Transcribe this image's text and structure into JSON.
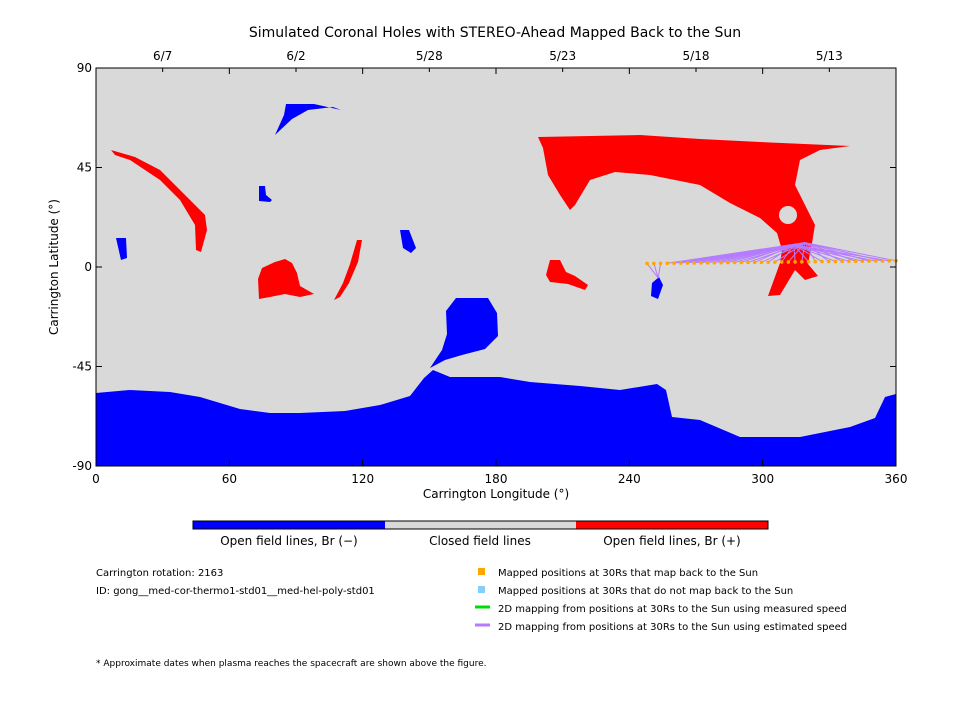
{
  "chart_data": {
    "type": "map",
    "title": "Simulated Coronal Holes with STEREO-Ahead Mapped Back to the Sun",
    "xlabel": "Carrington Longitude (°)",
    "ylabel": "Carrington Latitude (°)",
    "xlim": [
      0,
      360
    ],
    "ylim": [
      -90,
      90
    ],
    "x_ticks": [
      "0",
      "60",
      "120",
      "180",
      "240",
      "300",
      "360"
    ],
    "y_ticks": [
      "90",
      "45",
      "0",
      "-45",
      "-90"
    ],
    "top_axis_dates": [
      {
        "label": "6/7",
        "lon": 30
      },
      {
        "label": "6/2",
        "lon": 90
      },
      {
        "label": "5/28",
        "lon": 150
      },
      {
        "label": "5/23",
        "lon": 210
      },
      {
        "label": "5/18",
        "lon": 270
      },
      {
        "label": "5/13",
        "lon": 330
      }
    ],
    "colorbar": [
      {
        "label": "Open field lines, Br (−)",
        "color": "#0000ff"
      },
      {
        "label": "Closed field lines",
        "color": "#d9d9d9"
      },
      {
        "label": "Open field lines, Br (+)",
        "color": "#ff0000"
      }
    ],
    "info": {
      "rotation": "Carrington rotation: 2163",
      "id": "ID: gong__med-cor-thermo1-std01__med-hel-poly-std01"
    },
    "legend": [
      {
        "type": "square",
        "color": "#ffa500",
        "label": "Mapped positions at 30Rs that map back to the Sun"
      },
      {
        "type": "square",
        "color": "#87cefa",
        "label": "Mapped positions at 30Rs that do not map back to the Sun"
      },
      {
        "type": "line",
        "color": "#00dd00",
        "label": "2D mapping from positions at 30Rs to the Sun using measured speed"
      },
      {
        "type": "line",
        "color": "#b57bff",
        "label": "2D mapping from positions at 30Rs to the Sun using estimated speed"
      }
    ],
    "footnote": "* Approximate dates when plasma reaches the spacecraft are shown above the figure.",
    "mapped_points": {
      "lon_start": 248,
      "lat_start": 1.6,
      "lon_end": 360,
      "lat_end": 2.8,
      "count": 38
    },
    "footpoint_targets": [
      {
        "lon": 314,
        "lat": 10
      },
      {
        "lon": 319,
        "lat": 11
      },
      {
        "lon": 253,
        "lat": -5
      }
    ],
    "regions": {
      "positive": [
        {
          "name": "north-east-cap",
          "lon_range": [
            198,
            338
          ],
          "lat_range": [
            -13,
            55
          ]
        },
        {
          "name": "north-west-arc",
          "lon_range": [
            8,
            50
          ],
          "lat_range": [
            7,
            52
          ]
        },
        {
          "name": "mid-west-patch",
          "lon_range": [
            73,
            103
          ],
          "lat_range": [
            -14,
            3
          ]
        },
        {
          "name": "thin-arc-center",
          "lon_range": [
            100,
            120
          ],
          "lat_range": [
            -14,
            12
          ]
        },
        {
          "name": "equatorial-patch",
          "lon_range": [
            203,
            222
          ],
          "lat_range": [
            -8,
            5
          ]
        }
      ],
      "negative": [
        {
          "name": "south-polar-cap",
          "lon_range": [
            0,
            360
          ],
          "lat_range": [
            -90,
            -48
          ]
        },
        {
          "name": "central-south-extension",
          "lon_range": [
            148,
            180
          ],
          "lat_range": [
            -45,
            -13
          ]
        },
        {
          "name": "north-small-strip",
          "lon_range": [
            81,
            111
          ],
          "lat_range": [
            58,
            74
          ]
        }
      ]
    }
  }
}
